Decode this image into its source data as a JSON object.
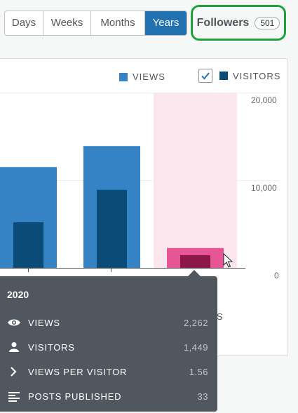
{
  "period_tabs": [
    {
      "label": "Days",
      "active": false
    },
    {
      "label": "Weeks",
      "active": false
    },
    {
      "label": "Months",
      "active": false
    },
    {
      "label": "Years",
      "active": true
    }
  ],
  "followers": {
    "label": "Followers",
    "count": "501"
  },
  "legend": {
    "views": "VIEWS",
    "visitors": "VISITORS",
    "visitors_checked": true
  },
  "colors": {
    "views": "#3582c4",
    "visitors": "#0a4b78",
    "selected_views": "#e65695",
    "selected_visitors": "#8c1749",
    "highlight": "#fbe6ee",
    "accent": "#2271b1"
  },
  "chart_data": {
    "type": "bar",
    "y_ticks": [
      "20,000",
      "10,000",
      "0"
    ],
    "ylim": [
      0,
      20000
    ],
    "series": [
      {
        "name": "VIEWS",
        "values": [
          11500,
          13900,
          2262
        ]
      },
      {
        "name": "VISITORS",
        "values": [
          5200,
          8900,
          1449
        ]
      }
    ],
    "selected_index": 2
  },
  "tooltip": {
    "year": "2020",
    "rows": [
      {
        "icon": "eye-icon",
        "label": "VIEWS",
        "value": "2,262"
      },
      {
        "icon": "person-icon",
        "label": "VISITORS",
        "value": "1,449"
      },
      {
        "icon": "chevron-right-icon",
        "label": "VIEWS PER VISITOR",
        "value": "1.56"
      },
      {
        "icon": "posts-icon",
        "label": "POSTS PUBLISHED",
        "value": "33"
      }
    ]
  },
  "cut_text": "S"
}
